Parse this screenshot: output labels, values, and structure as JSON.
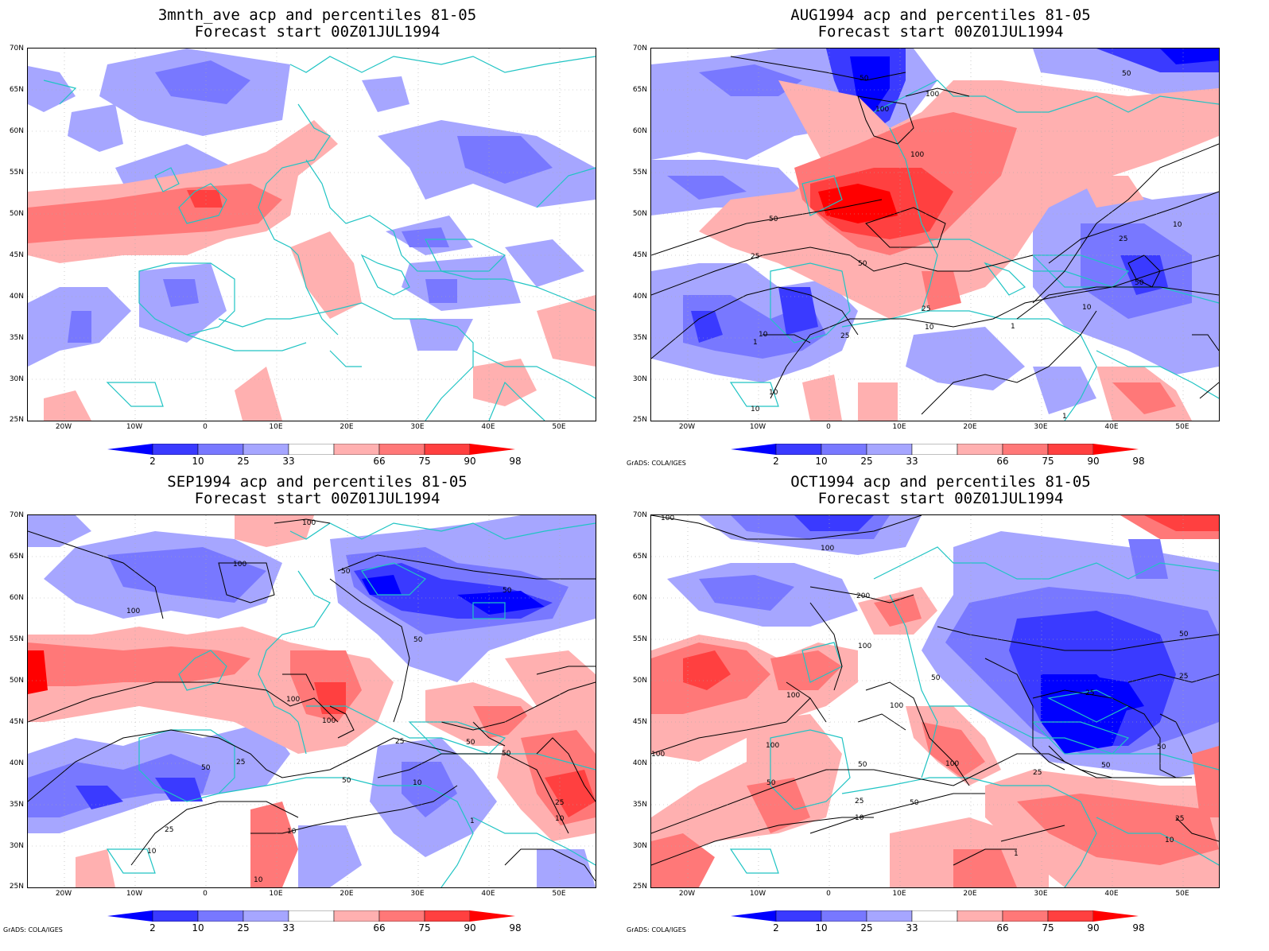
{
  "panels": [
    {
      "title1": "3mnth_ave acp and percentiles 81-05",
      "title2": "Forecast start 00Z01JUL1994",
      "credit": ""
    },
    {
      "title1": "AUG1994 acp and percentiles 81-05",
      "title2": "Forecast start 00Z01JUL1994",
      "credit": "GrADS: COLA/IGES"
    },
    {
      "title1": "SEP1994 acp and percentiles 81-05",
      "title2": "Forecast start 00Z01JUL1994",
      "credit": "GrADS: COLA/IGES"
    },
    {
      "title1": "OCT1994 acp and percentiles 81-05",
      "title2": "Forecast start 00Z01JUL1994",
      "credit": "GrADS: COLA/IGES"
    }
  ],
  "lat_labels": [
    "70N",
    "65N",
    "60N",
    "55N",
    "50N",
    "45N",
    "40N",
    "35N",
    "30N",
    "25N"
  ],
  "lon_labels": [
    "20W",
    "10W",
    "0",
    "10E",
    "20E",
    "30E",
    "40E",
    "50E"
  ],
  "colorbar": {
    "labels": [
      "2",
      "10",
      "25",
      "33",
      "66",
      "75",
      "90",
      "98"
    ],
    "colors": [
      "#0000ff",
      "#3a3aff",
      "#7878ff",
      "#a6a6ff",
      "#ffffff",
      "#ffb0b0",
      "#ff7878",
      "#ff4040",
      "#ff0000"
    ]
  },
  "contour_labels": {
    "p1": [
      "50",
      "100",
      "100",
      "100",
      "50",
      "50",
      "25",
      "10",
      "1",
      "25",
      "10",
      "10",
      "25",
      "50",
      "10",
      "25",
      "50",
      "10",
      "1",
      "1",
      "10"
    ],
    "p2": [
      "100",
      "100",
      "100",
      "50",
      "50",
      "50",
      "100",
      "100",
      "50",
      "25",
      "50",
      "25",
      "10",
      "50",
      "50",
      "25",
      "10",
      "10",
      "10",
      "25",
      "10",
      "1"
    ],
    "p3": [
      "100",
      "100",
      "200",
      "100",
      "50",
      "100",
      "50",
      "25",
      "100",
      "100",
      "100",
      "50",
      "100",
      "50",
      "50",
      "25",
      "10",
      "25",
      "50",
      "25",
      "10",
      "1",
      "50",
      "25"
    ]
  }
}
